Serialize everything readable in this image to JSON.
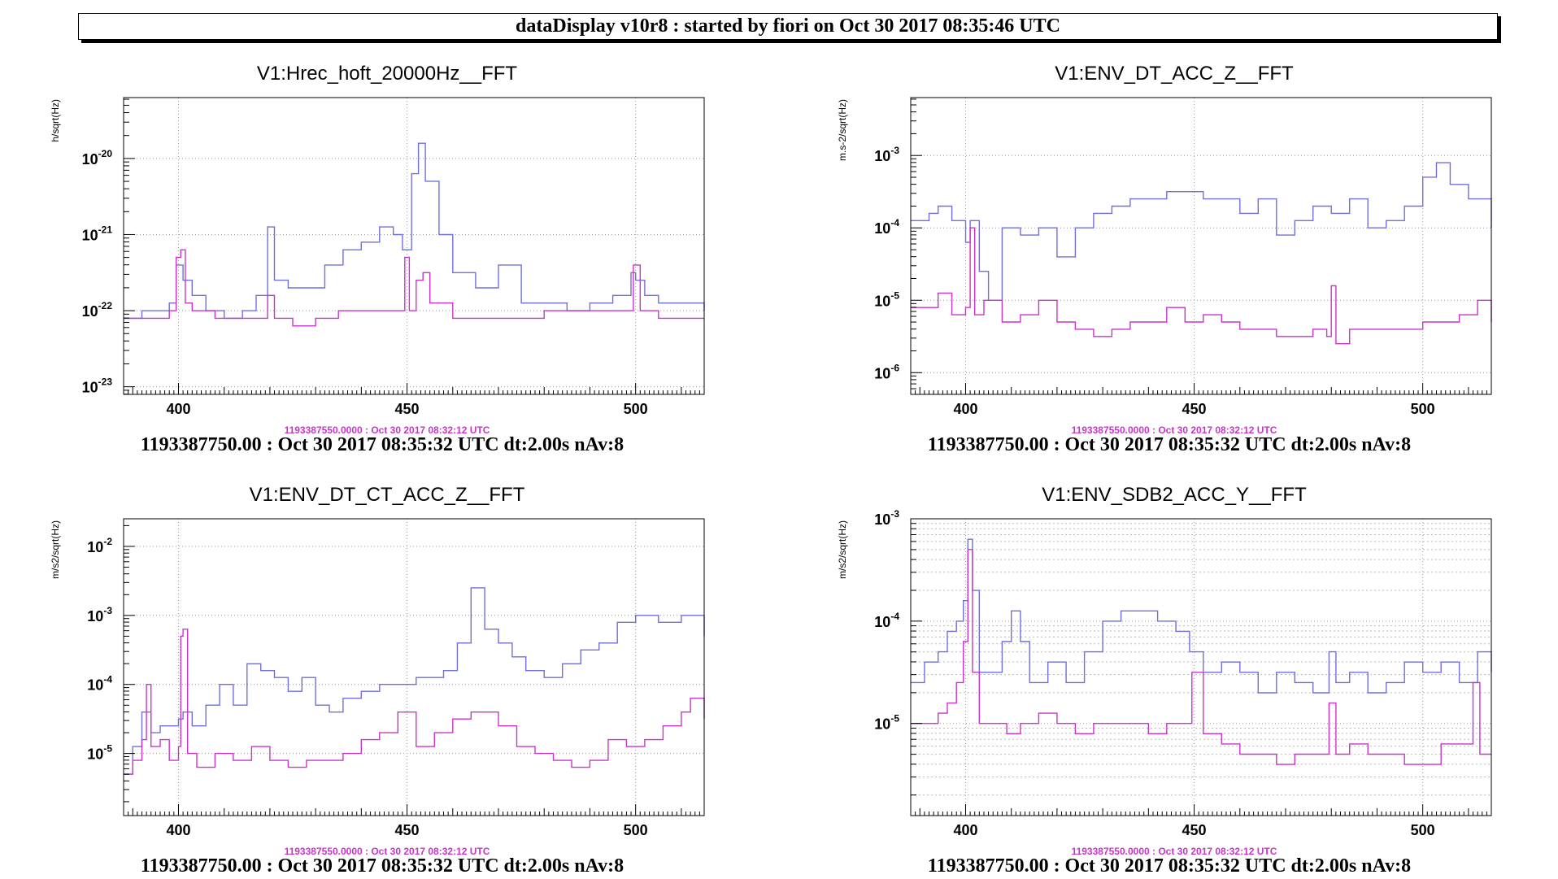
{
  "header": {
    "title": "dataDisplay v10r8 : started by fiori on Oct 30 2017 08:35:46 UTC"
  },
  "colors": {
    "reference": "#cc33cc",
    "current": "#6f6fe0",
    "grid": "#999999",
    "axis": "#000000"
  },
  "chart_data": [
    {
      "type": "line",
      "title": "V1:Hrec_hoft_20000Hz__FFT",
      "ylabel": "h/sqrt(Hz)",
      "xlabel": "",
      "log_y": true,
      "xlim": [
        388,
        515
      ],
      "ylim_exp": [
        -23.1,
        -19.2
      ],
      "x_ticks": [
        400,
        450,
        500
      ],
      "y_ticks": [
        -23,
        -22,
        -21,
        -20
      ],
      "fine_y_grid": false,
      "reference_timestamp": "1193387550.0000 : Oct 30 2017 08:32:12 UTC",
      "footer": "1193387750.00 : Oct 30 2017 08:35:32 UTC dt:2.00s nAv:8",
      "series": [
        {
          "x": [
            388,
            392,
            396,
            398,
            399.5,
            401,
            403,
            406,
            410,
            414,
            417,
            419.5,
            421,
            424,
            428,
            432,
            436,
            440,
            444,
            447,
            449,
            451,
            452.5,
            454,
            457,
            460,
            465,
            470,
            475,
            480,
            485,
            490,
            495,
            499,
            500,
            502,
            505,
            510,
            515
          ],
          "y": [
            -22.1,
            -22.0,
            -22.0,
            -21.9,
            -21.4,
            -21.6,
            -21.8,
            -22.0,
            -22.1,
            -22.0,
            -21.8,
            -20.9,
            -21.6,
            -21.7,
            -21.7,
            -21.4,
            -21.2,
            -21.1,
            -20.9,
            -21.0,
            -21.2,
            -20.2,
            -19.8,
            -20.3,
            -21.0,
            -21.5,
            -21.7,
            -21.4,
            -21.9,
            -21.9,
            -22.0,
            -21.9,
            -21.8,
            -21.5,
            -21.6,
            -21.8,
            -21.9,
            -21.9,
            -22.0
          ]
        },
        {
          "x": [
            388,
            392,
            396,
            398,
            399.5,
            400.5,
            401.5,
            403,
            408,
            415,
            419.5,
            421,
            425,
            430,
            435,
            440,
            445,
            448,
            449.5,
            450.5,
            452,
            453.5,
            455,
            460,
            470,
            480,
            490,
            497,
            499.5,
            501,
            505,
            510,
            515
          ],
          "y": [
            -22.1,
            -22.1,
            -22.1,
            -22.0,
            -21.3,
            -21.2,
            -21.9,
            -22.0,
            -22.1,
            -22.1,
            -21.8,
            -22.1,
            -22.2,
            -22.1,
            -22.0,
            -22.0,
            -22.0,
            -22.0,
            -21.3,
            -22.0,
            -21.6,
            -21.5,
            -21.9,
            -22.1,
            -22.1,
            -22.0,
            -22.0,
            -22.0,
            -21.4,
            -22.0,
            -22.1,
            -22.1,
            -22.1
          ]
        }
      ]
    },
    {
      "type": "line",
      "title": "V1:ENV_DT_ACC_Z__FFT",
      "ylabel": "m.s-2/sqrt(Hz)",
      "xlabel": "",
      "log_y": true,
      "xlim": [
        388,
        515
      ],
      "ylim_exp": [
        -6.3,
        -2.2
      ],
      "x_ticks": [
        400,
        450,
        500
      ],
      "y_ticks": [
        -6,
        -5,
        -4,
        -3
      ],
      "fine_y_grid": false,
      "reference_timestamp": "1193387550.0000 : Oct 30 2017 08:32:12 UTC",
      "footer": "1193387750.00 : Oct 30 2017 08:35:32 UTC dt:2.00s nAv:8",
      "series": [
        {
          "x": [
            388,
            392,
            394,
            397,
            400,
            401,
            403,
            405,
            408,
            412,
            416,
            420,
            424,
            428,
            432,
            436,
            440,
            444,
            448,
            452,
            456,
            460,
            464,
            468,
            472,
            476,
            480,
            484,
            488,
            492,
            496,
            500,
            503,
            506,
            510,
            515
          ],
          "y": [
            -3.9,
            -3.8,
            -3.7,
            -3.9,
            -4.2,
            -3.9,
            -4.6,
            -5.0,
            -4.0,
            -4.1,
            -4.0,
            -4.4,
            -4.0,
            -3.8,
            -3.7,
            -3.6,
            -3.6,
            -3.5,
            -3.5,
            -3.6,
            -3.6,
            -3.8,
            -3.6,
            -4.1,
            -3.9,
            -3.7,
            -3.8,
            -3.6,
            -4.0,
            -3.9,
            -3.7,
            -3.3,
            -3.1,
            -3.4,
            -3.6,
            -4.0
          ]
        },
        {
          "x": [
            388,
            392,
            394,
            397,
            400,
            401,
            402,
            404,
            408,
            412,
            416,
            420,
            424,
            428,
            432,
            436,
            440,
            444,
            448,
            452,
            456,
            460,
            464,
            468,
            472,
            476,
            479,
            480,
            481,
            484,
            488,
            492,
            496,
            500,
            504,
            508,
            512,
            515
          ],
          "y": [
            -5.1,
            -5.1,
            -4.9,
            -5.2,
            -5.1,
            -4.0,
            -5.2,
            -5.0,
            -5.3,
            -5.2,
            -5.0,
            -5.3,
            -5.4,
            -5.5,
            -5.4,
            -5.3,
            -5.3,
            -5.1,
            -5.3,
            -5.2,
            -5.3,
            -5.4,
            -5.4,
            -5.5,
            -5.5,
            -5.4,
            -5.5,
            -4.8,
            -5.6,
            -5.4,
            -5.4,
            -5.4,
            -5.4,
            -5.3,
            -5.3,
            -5.2,
            -5.0,
            -5.3
          ]
        }
      ]
    },
    {
      "type": "line",
      "title": "V1:ENV_DT_CT_ACC_Z__FFT",
      "ylabel": "m/s2/sqrt(Hz)",
      "xlabel": "",
      "log_y": true,
      "xlim": [
        388,
        515
      ],
      "ylim_exp": [
        -5.9,
        -1.6
      ],
      "x_ticks": [
        400,
        450,
        500
      ],
      "y_ticks": [
        -5,
        -4,
        -3,
        -2
      ],
      "fine_y_grid": false,
      "reference_timestamp": "1193387550.0000 : Oct 30 2017 08:32:12 UTC",
      "footer": "1193387750.00 : Oct 30 2017 08:35:32 UTC dt:2.00s nAv:8",
      "series": [
        {
          "x": [
            388,
            390,
            392,
            394,
            396,
            398,
            400,
            401,
            403,
            406,
            409,
            412,
            415,
            418,
            421,
            424,
            427,
            430,
            433,
            436,
            440,
            444,
            448,
            452,
            455,
            458,
            461,
            464,
            467,
            470,
            473,
            476,
            480,
            484,
            488,
            492,
            496,
            500,
            505,
            510,
            515
          ],
          "y": [
            -5.3,
            -4.9,
            -4.4,
            -4.7,
            -4.6,
            -4.6,
            -4.5,
            -4.4,
            -4.6,
            -4.3,
            -4.0,
            -4.3,
            -3.7,
            -3.8,
            -3.9,
            -4.1,
            -3.9,
            -4.3,
            -4.4,
            -4.2,
            -4.1,
            -4.0,
            -4.0,
            -3.9,
            -3.9,
            -3.8,
            -3.4,
            -2.6,
            -3.2,
            -3.4,
            -3.6,
            -3.8,
            -3.9,
            -3.7,
            -3.5,
            -3.4,
            -3.1,
            -3.0,
            -3.1,
            -3.0,
            -3.3
          ]
        },
        {
          "x": [
            388,
            390,
            392,
            393,
            394,
            396,
            398,
            400,
            400.5,
            401,
            402,
            404,
            408,
            412,
            416,
            420,
            424,
            428,
            432,
            436,
            440,
            444,
            448,
            452,
            456,
            460,
            464,
            467,
            470,
            474,
            478,
            482,
            486,
            490,
            494,
            498,
            502,
            506,
            510,
            512,
            515
          ],
          "y": [
            -5.3,
            -5.1,
            -4.8,
            -4.0,
            -4.9,
            -4.8,
            -5.1,
            -4.9,
            -3.3,
            -3.2,
            -5.0,
            -5.2,
            -5.0,
            -5.1,
            -4.9,
            -5.1,
            -5.2,
            -5.1,
            -5.1,
            -5.0,
            -4.8,
            -4.7,
            -4.4,
            -4.9,
            -4.7,
            -4.5,
            -4.4,
            -4.4,
            -4.6,
            -4.9,
            -5.0,
            -5.1,
            -5.2,
            -5.1,
            -4.8,
            -4.9,
            -4.8,
            -4.6,
            -4.4,
            -4.2,
            -4.5
          ]
        }
      ]
    },
    {
      "type": "line",
      "title": "V1:ENV_SDB2_ACC_Y__FFT",
      "ylabel": "m/s2/sqrt(Hz)",
      "xlabel": "",
      "log_y": true,
      "xlim": [
        388,
        515
      ],
      "ylim_exp": [
        -5.9,
        -3.0
      ],
      "x_ticks": [
        400,
        450,
        500
      ],
      "y_ticks": [
        -5,
        -4,
        -3
      ],
      "fine_y_grid": true,
      "reference_timestamp": "1193387550.0000 : Oct 30 2017 08:32:12 UTC",
      "footer": "1193387750.00 : Oct 30 2017 08:35:32 UTC dt:2.00s nAv:8",
      "series": [
        {
          "x": [
            388,
            391,
            394,
            396,
            398,
            399.5,
            400.5,
            401.5,
            403,
            405,
            408,
            410,
            412,
            414,
            418,
            422,
            426,
            430,
            434,
            438,
            442,
            446,
            449,
            452,
            456,
            460,
            464,
            468,
            472,
            476,
            478,
            479.5,
            481,
            484,
            488,
            492,
            496,
            500,
            504,
            508,
            512,
            515
          ],
          "y": [
            -4.6,
            -4.4,
            -4.3,
            -4.1,
            -4.0,
            -3.8,
            -3.2,
            -3.7,
            -4.5,
            -4.5,
            -4.2,
            -3.9,
            -4.2,
            -4.6,
            -4.4,
            -4.6,
            -4.3,
            -4.0,
            -3.9,
            -3.9,
            -4.0,
            -4.1,
            -4.3,
            -4.5,
            -4.4,
            -4.5,
            -4.7,
            -4.5,
            -4.6,
            -4.7,
            -4.7,
            -4.3,
            -4.6,
            -4.5,
            -4.7,
            -4.6,
            -4.4,
            -4.5,
            -4.4,
            -4.6,
            -4.3,
            -4.5
          ]
        },
        {
          "x": [
            388,
            391,
            394,
            396,
            398,
            399.5,
            400.5,
            401.5,
            403,
            406,
            409,
            412,
            416,
            420,
            424,
            428,
            432,
            436,
            440,
            444,
            448,
            449.5,
            452,
            456,
            460,
            464,
            468,
            472,
            476,
            478,
            479.5,
            481,
            484,
            488,
            492,
            496,
            500,
            504,
            508,
            511,
            512.5,
            515
          ],
          "y": [
            -5.0,
            -5.0,
            -4.9,
            -4.8,
            -4.6,
            -4.2,
            -3.3,
            -4.5,
            -5.0,
            -5.0,
            -5.1,
            -5.0,
            -4.9,
            -5.0,
            -5.1,
            -5.0,
            -5.0,
            -5.0,
            -5.1,
            -5.0,
            -5.0,
            -4.5,
            -5.1,
            -5.2,
            -5.3,
            -5.3,
            -5.4,
            -5.3,
            -5.3,
            -5.3,
            -4.8,
            -5.3,
            -5.2,
            -5.3,
            -5.3,
            -5.4,
            -5.4,
            -5.2,
            -5.2,
            -4.6,
            -5.3,
            -5.3
          ]
        }
      ]
    }
  ]
}
